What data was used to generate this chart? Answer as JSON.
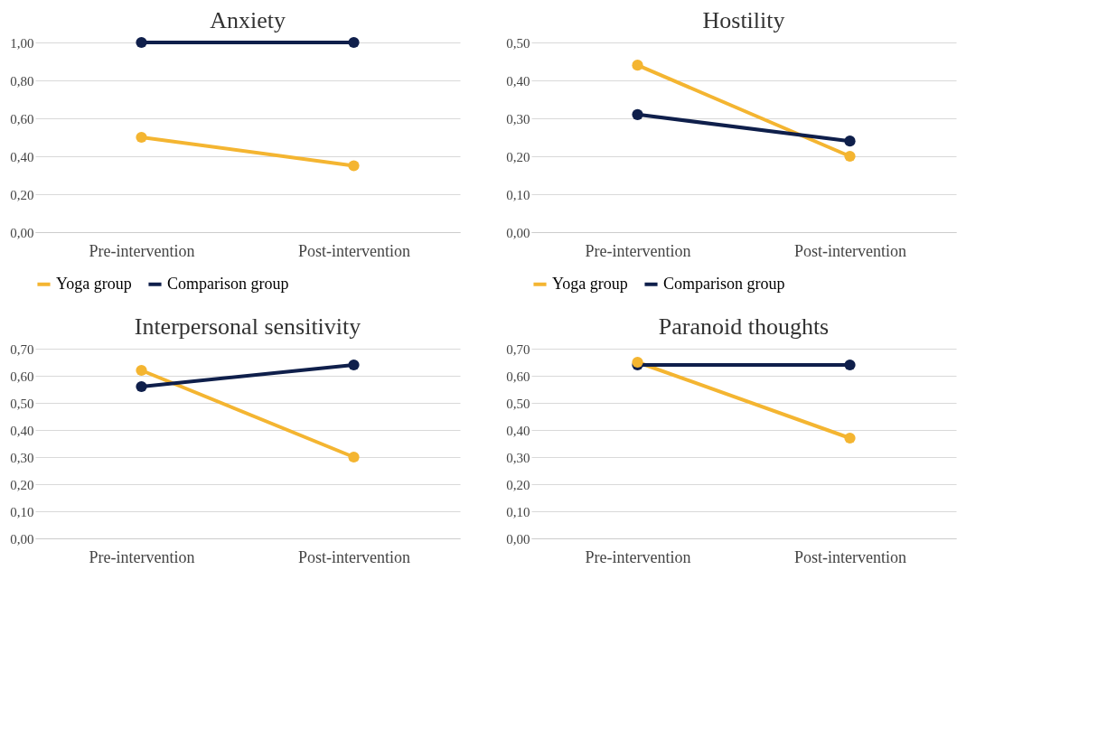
{
  "chart_data": [
    {
      "type": "line",
      "title": "Anxiety",
      "categories": [
        "Pre-intervention",
        "Post-intervention"
      ],
      "series": [
        {
          "name": "Yoga group",
          "color": "#f4b531",
          "values": [
            0.5,
            0.35
          ]
        },
        {
          "name": "Comparison group",
          "color": "#0f1f4b",
          "values": [
            1.0,
            1.0
          ]
        }
      ],
      "ylim": [
        0,
        1
      ],
      "yticks": [
        {
          "value": 0,
          "label": "0,00"
        },
        {
          "value": 0.2,
          "label": "0,20"
        },
        {
          "value": 0.4,
          "label": "0,40"
        },
        {
          "value": 0.6,
          "label": "0,60"
        },
        {
          "value": 0.8,
          "label": "0,80"
        },
        {
          "value": 1,
          "label": "1,00"
        }
      ],
      "grid": "y",
      "legend": "bottom",
      "marker": "circle",
      "line_style": "solid"
    },
    {
      "type": "line",
      "title": "Hostility",
      "categories": [
        "Pre-intervention",
        "Post-intervention"
      ],
      "series": [
        {
          "name": "Yoga group",
          "color": "#f4b531",
          "values": [
            0.44,
            0.2
          ]
        },
        {
          "name": "Comparison group",
          "color": "#0f1f4b",
          "values": [
            0.31,
            0.24
          ]
        }
      ],
      "ylim": [
        0,
        0.5
      ],
      "yticks": [
        {
          "value": 0,
          "label": "0,00"
        },
        {
          "value": 0.1,
          "label": "0,10"
        },
        {
          "value": 0.2,
          "label": "0,20"
        },
        {
          "value": 0.3,
          "label": "0,30"
        },
        {
          "value": 0.4,
          "label": "0,40"
        },
        {
          "value": 0.5,
          "label": "0,50"
        }
      ],
      "grid": "y",
      "legend": "bottom",
      "marker": "circle",
      "line_style": "solid"
    },
    {
      "type": "line",
      "title": "Interpersonal sensitivity",
      "categories": [
        "Pre-intervention",
        "Post-intervention"
      ],
      "series": [
        {
          "color": "#f4b531",
          "values": [
            0.62,
            0.3
          ]
        },
        {
          "color": "#0f1f4b",
          "values": [
            0.56,
            0.64
          ]
        }
      ],
      "ylim": [
        0,
        0.7
      ],
      "yticks": [
        {
          "value": 0,
          "label": "0,00"
        },
        {
          "value": 0.1,
          "label": "0,10"
        },
        {
          "value": 0.2,
          "label": "0,20"
        },
        {
          "value": 0.3,
          "label": "0,30"
        },
        {
          "value": 0.4,
          "label": "0,40"
        },
        {
          "value": 0.5,
          "label": "0,50"
        },
        {
          "value": 0.6,
          "label": "0,60"
        },
        {
          "value": 0.7,
          "label": "0,70"
        }
      ],
      "grid": "y",
      "marker": "circle",
      "line_style": "solid"
    },
    {
      "type": "line",
      "title": "Paranoid thoughts",
      "categories": [
        "Pre-intervention",
        "Post-intervention"
      ],
      "series": [
        {
          "color": "#f4b531",
          "values": [
            0.65,
            0.37
          ]
        },
        {
          "color": "#0f1f4b",
          "values": [
            0.64,
            0.64
          ]
        }
      ],
      "ylim": [
        0,
        0.7
      ],
      "yticks": [
        {
          "value": 0,
          "label": "0,00"
        },
        {
          "value": 0.1,
          "label": "0,10"
        },
        {
          "value": 0.2,
          "label": "0,20"
        },
        {
          "value": 0.3,
          "label": "0,30"
        },
        {
          "value": 0.4,
          "label": "0,40"
        },
        {
          "value": 0.5,
          "label": "0,50"
        },
        {
          "value": 0.6,
          "label": "0,60"
        },
        {
          "value": 0.7,
          "label": "0,70"
        }
      ],
      "grid": "y",
      "marker": "circle",
      "line_style": "solid"
    }
  ]
}
